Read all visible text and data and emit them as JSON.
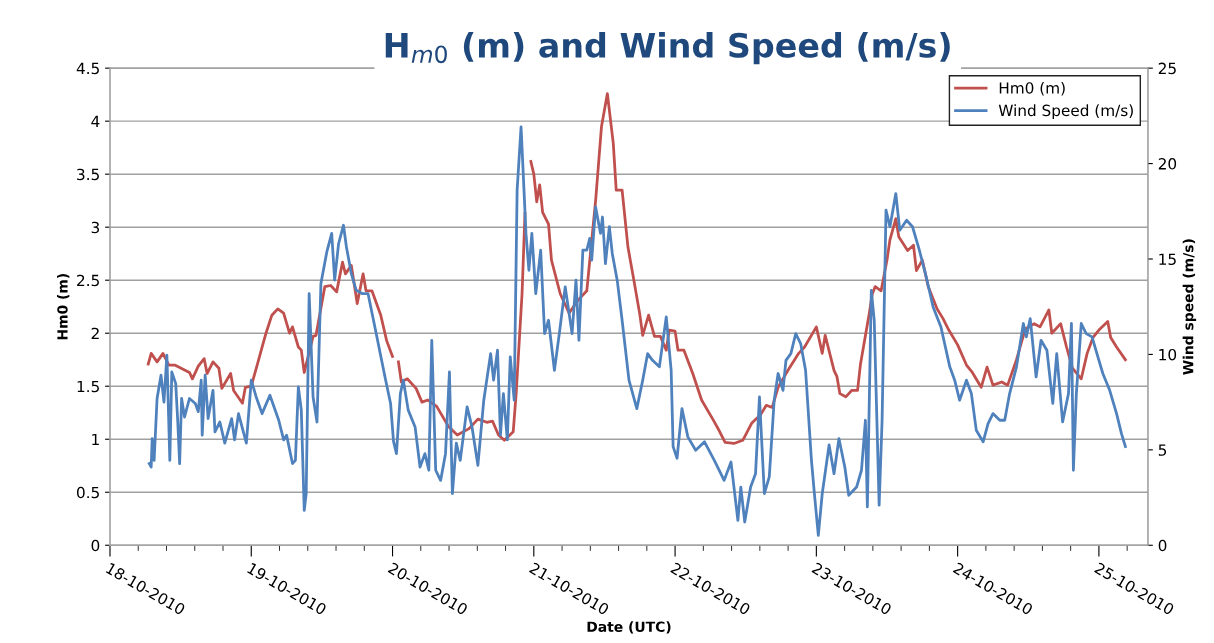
{
  "chart_data": {
    "type": "line",
    "title": "H$_{m0}$ (m) and Wind Speed (m/s)",
    "xlabel": "Date (UTC)",
    "ylabel": "Hm0 (m)",
    "y2label": "Wind speed (m/s)",
    "xlim": [
      "2010-10-18T00:00",
      "2010-10-25T08:20"
    ],
    "xticks": [
      {
        "value": "2010-10-18",
        "label": "18-10-2010"
      },
      {
        "value": "2010-10-19",
        "label": "19-10-2010"
      },
      {
        "value": "2010-10-20",
        "label": "20-10-2010"
      },
      {
        "value": "2010-10-21",
        "label": "21-10-2010"
      },
      {
        "value": "2010-10-22",
        "label": "22-10-2010"
      },
      {
        "value": "2010-10-23",
        "label": "23-10-2010"
      },
      {
        "value": "2010-10-24",
        "label": "24-10-2010"
      },
      {
        "value": "2010-10-25",
        "label": "25-10-2010"
      }
    ],
    "ylim": [
      0,
      4.5
    ],
    "yticks": [
      0,
      0.5,
      1,
      1.5,
      2,
      2.5,
      3,
      3.5,
      4,
      4.5
    ],
    "y2lim": [
      0,
      25
    ],
    "y2ticks": [
      0,
      5,
      10,
      15,
      20,
      25
    ],
    "grid": "y",
    "legend": "top right",
    "marker": "none",
    "line_style": "solid",
    "series": [
      {
        "name": "Hm0 (m)",
        "color": "#c0504d",
        "x": [
          "2010-10-18T06:30",
          "2010-10-18T07:00",
          "2010-10-18T08:00",
          "2010-10-18T09:00",
          "2010-10-18T10:00",
          "2010-10-18T11:00",
          "2010-10-18T13:30",
          "2010-10-18T14:00",
          "2010-10-18T15:00",
          "2010-10-18T16:00",
          "2010-10-18T16:30",
          "2010-10-18T17:30",
          "2010-10-18T18:30",
          "2010-10-18T19:00",
          "2010-10-18T20:30",
          "2010-10-18T21:00",
          "2010-10-18T22:30",
          "2010-10-18T23:00",
          "2010-10-19T00:00",
          "2010-10-19T01:00",
          "2010-10-19T02:30",
          "2010-10-19T03:30",
          "2010-10-19T04:30",
          "2010-10-19T05:30",
          "2010-10-19T06:30",
          "2010-10-19T07:00",
          "2010-10-19T08:00",
          "2010-10-19T08:30",
          "2010-10-19T09:00",
          "2010-10-19T10:30",
          "2010-10-19T11:00",
          "2010-10-19T12:30",
          "2010-10-19T13:30",
          "2010-10-19T14:30",
          "2010-10-19T15:30",
          "2010-10-19T16:00",
          "2010-10-19T17:00",
          "2010-10-19T18:00",
          "2010-10-19T19:00",
          "2010-10-19T19:30",
          "2010-10-19T20:30",
          "2010-10-19T22:00",
          "2010-10-19T23:00",
          "2010-10-20T00:00",
          "2010-10-20T00:30",
          "2010-10-20T01:00",
          "2010-10-20T01:30",
          "2010-10-20T02:30",
          "2010-10-20T04:00",
          "2010-10-20T05:00",
          "2010-10-20T06:00",
          "2010-10-20T07:30",
          "2010-10-20T09:30",
          "2010-10-20T11:00",
          "2010-10-20T13:00",
          "2010-10-20T14:30",
          "2010-10-20T16:00",
          "2010-10-20T17:00",
          "2010-10-20T18:00",
          "2010-10-20T19:00",
          "2010-10-20T20:30",
          "2010-10-20T21:00",
          "2010-10-20T22:00",
          "2010-10-20T22:30",
          "2010-10-20T23:00",
          "2010-10-20T23:30",
          "2010-10-21T00:00",
          "2010-10-21T00:30",
          "2010-10-21T01:00",
          "2010-10-21T01:30",
          "2010-10-21T02:30",
          "2010-10-21T03:00",
          "2010-10-21T04:30",
          "2010-10-21T05:30",
          "2010-10-21T06:00",
          "2010-10-21T07:30",
          "2010-10-21T09:00",
          "2010-10-21T10:30",
          "2010-10-21T11:30",
          "2010-10-21T12:30",
          "2010-10-21T13:30",
          "2010-10-21T14:00",
          "2010-10-21T15:00",
          "2010-10-21T16:00",
          "2010-10-21T17:00",
          "2010-10-21T18:00",
          "2010-10-21T18:30",
          "2010-10-21T19:30",
          "2010-10-21T20:30",
          "2010-10-21T21:30",
          "2010-10-21T22:30",
          "2010-10-21T23:00",
          "2010-10-22T00:00",
          "2010-10-22T00:30",
          "2010-10-22T01:30",
          "2010-10-22T03:00",
          "2010-10-22T04:30",
          "2010-10-22T06:30",
          "2010-10-22T07:30",
          "2010-10-22T08:30",
          "2010-10-22T10:00",
          "2010-10-22T11:30",
          "2010-10-22T13:00",
          "2010-10-22T14:30",
          "2010-10-22T15:30",
          "2010-10-22T16:30",
          "2010-10-22T17:30",
          "2010-10-22T19:30",
          "2010-10-22T21:00",
          "2010-10-22T22:00",
          "2010-10-23T00:00",
          "2010-10-23T01:00",
          "2010-10-23T01:30",
          "2010-10-23T03:00",
          "2010-10-23T03:30",
          "2010-10-23T04:00",
          "2010-10-23T05:00",
          "2010-10-23T06:00",
          "2010-10-23T07:00",
          "2010-10-23T07:30",
          "2010-10-23T09:00",
          "2010-10-23T09:30",
          "2010-10-23T10:00",
          "2010-10-23T11:00",
          "2010-10-23T12:00",
          "2010-10-23T12:30",
          "2010-10-23T13:30",
          "2010-10-23T14:00",
          "2010-10-23T15:30",
          "2010-10-23T16:30",
          "2010-10-23T17:00",
          "2010-10-23T18:00",
          "2010-10-23T19:00",
          "2010-10-23T20:30",
          "2010-10-23T21:30",
          "2010-10-23T22:30",
          "2010-10-24T00:00",
          "2010-10-24T01:30",
          "2010-10-24T02:30",
          "2010-10-24T04:00",
          "2010-10-24T05:00",
          "2010-10-24T06:00",
          "2010-10-24T07:30",
          "2010-10-24T08:30",
          "2010-10-24T10:00",
          "2010-10-24T11:30",
          "2010-10-24T13:00",
          "2010-10-24T14:00",
          "2010-10-24T15:30",
          "2010-10-24T16:00",
          "2010-10-24T17:30",
          "2010-10-24T18:30",
          "2010-10-24T19:30",
          "2010-10-24T21:00",
          "2010-10-24T22:00",
          "2010-10-24T23:00",
          "2010-10-25T00:00",
          "2010-10-25T01:30",
          "2010-10-25T02:00",
          "2010-10-25T03:00",
          "2010-10-25T04:30"
        ],
        "values": [
          1.71,
          1.81,
          1.73,
          1.81,
          1.7,
          1.7,
          1.63,
          1.57,
          1.69,
          1.76,
          1.62,
          1.73,
          1.67,
          1.48,
          1.62,
          1.46,
          1.34,
          1.49,
          1.5,
          1.7,
          2.0,
          2.17,
          2.23,
          2.19,
          2.0,
          2.06,
          1.87,
          1.84,
          1.63,
          1.97,
          1.98,
          2.44,
          2.45,
          2.39,
          2.67,
          2.56,
          2.64,
          2.28,
          2.56,
          2.4,
          2.4,
          2.17,
          1.93,
          1.78,
          null,
          1.73,
          1.54,
          1.57,
          1.48,
          1.35,
          1.37,
          1.31,
          1.12,
          1.04,
          1.1,
          1.19,
          1.16,
          1.17,
          1.04,
          0.99,
          1.07,
          1.43,
          2.37,
          3.13,
          null,
          3.62,
          3.5,
          3.24,
          3.4,
          3.14,
          3.03,
          2.69,
          2.37,
          2.25,
          2.19,
          2.31,
          2.4,
          3.25,
          3.95,
          4.26,
          3.79,
          3.35,
          3.35,
          2.81,
          2.5,
          2.18,
          1.98,
          2.17,
          1.97,
          1.97,
          1.84,
          2.03,
          2.02,
          1.84,
          1.84,
          1.62,
          1.37,
          1.18,
          1.08,
          0.97,
          0.96,
          0.99,
          1.15,
          1.23,
          1.32,
          1.3,
          1.49,
          1.68,
          1.81,
          1.87,
          2.06,
          1.81,
          1.98,
          1.65,
          1.59,
          1.43,
          1.4,
          1.46,
          1.46,
          1.71,
          2.19,
          2.37,
          2.44,
          2.4,
          2.69,
          2.88,
          3.08,
          2.91,
          2.78,
          2.83,
          2.59,
          2.69,
          2.44,
          2.23,
          2.14,
          2.03,
          1.89,
          1.7,
          1.63,
          1.49,
          1.68,
          1.51,
          1.54,
          1.51,
          1.75,
          2.04,
          2.09,
          2.06,
          2.22,
          2.0,
          2.09,
          1.87,
          1.67,
          1.57,
          1.81,
          1.96,
          2.03,
          2.11,
          1.96,
          1.87,
          1.75
        ]
      },
      {
        "name": "Wind Speed (m/s)",
        "color": "#4f81bd",
        "axis": "y2",
        "x": [
          "2010-10-18T06:40",
          "2010-10-18T07:00",
          "2010-10-18T07:10",
          "2010-10-18T07:30",
          "2010-10-18T08:00",
          "2010-10-18T08:40",
          "2010-10-18T09:10",
          "2010-10-18T09:40",
          "2010-10-18T10:10",
          "2010-10-18T10:30",
          "2010-10-18T11:10",
          "2010-10-18T11:30",
          "2010-10-18T11:50",
          "2010-10-18T12:10",
          "2010-10-18T12:40",
          "2010-10-18T13:30",
          "2010-10-18T14:30",
          "2010-10-18T15:00",
          "2010-10-18T15:30",
          "2010-10-18T15:40",
          "2010-10-18T16:10",
          "2010-10-18T16:40",
          "2010-10-18T17:30",
          "2010-10-18T17:50",
          "2010-10-18T18:40",
          "2010-10-18T19:30",
          "2010-10-18T20:40",
          "2010-10-18T21:10",
          "2010-10-18T21:50",
          "2010-10-18T23:10",
          "2010-10-19T00:00",
          "2010-10-19T00:50",
          "2010-10-19T01:50",
          "2010-10-19T03:10",
          "2010-10-19T04:40",
          "2010-10-19T05:30",
          "2010-10-19T06:00",
          "2010-10-19T07:00",
          "2010-10-19T07:30",
          "2010-10-19T08:00",
          "2010-10-19T08:30",
          "2010-10-19T09:00",
          "2010-10-19T09:20",
          "2010-10-19T09:50",
          "2010-10-19T10:30",
          "2010-10-19T11:10",
          "2010-10-19T11:50",
          "2010-10-19T12:50",
          "2010-10-19T13:40",
          "2010-10-19T14:10",
          "2010-10-19T14:50",
          "2010-10-19T15:40",
          "2010-10-19T16:10",
          "2010-10-19T17:00",
          "2010-10-19T17:50",
          "2010-10-19T18:50",
          "2010-10-19T19:50",
          "2010-10-19T21:00",
          "2010-10-19T22:50",
          "2010-10-19T23:40",
          "2010-10-20T00:10",
          "2010-10-20T00:40",
          "2010-10-20T01:20",
          "2010-10-20T01:50",
          "2010-10-20T02:40",
          "2010-10-20T03:50",
          "2010-10-20T04:40",
          "2010-10-20T05:30",
          "2010-10-20T06:10",
          "2010-10-20T06:40",
          "2010-10-20T07:20",
          "2010-10-20T08:10",
          "2010-10-20T09:00",
          "2010-10-20T09:40",
          "2010-10-20T10:10",
          "2010-10-20T10:50",
          "2010-10-20T11:30",
          "2010-10-20T12:40",
          "2010-10-20T13:30",
          "2010-10-20T14:30",
          "2010-10-20T15:30",
          "2010-10-20T16:40",
          "2010-10-20T17:10",
          "2010-10-20T17:50",
          "2010-10-20T18:20",
          "2010-10-20T18:50",
          "2010-10-20T19:30",
          "2010-10-20T20:00",
          "2010-10-20T20:40",
          "2010-10-20T21:10",
          "2010-10-20T21:50",
          "2010-10-20T22:20",
          "2010-10-20T22:40",
          "2010-10-20T23:10",
          "2010-10-20T23:40",
          "2010-10-21T00:20",
          "2010-10-21T01:10",
          "2010-10-21T01:50",
          "2010-10-21T02:30",
          "2010-10-21T03:30",
          "2010-10-21T04:20",
          "2010-10-21T05:20",
          "2010-10-21T06:30",
          "2010-10-21T07:10",
          "2010-10-21T07:40",
          "2010-10-21T08:20",
          "2010-10-21T09:00",
          "2010-10-21T09:30",
          "2010-10-21T09:50",
          "2010-10-21T10:30",
          "2010-10-21T11:20",
          "2010-10-21T11:40",
          "2010-10-21T12:10",
          "2010-10-21T12:50",
          "2010-10-21T13:20",
          "2010-10-21T14:10",
          "2010-10-21T15:00",
          "2010-10-21T16:10",
          "2010-10-21T17:30",
          "2010-10-21T18:30",
          "2010-10-21T19:20",
          "2010-10-21T20:10",
          "2010-10-21T21:20",
          "2010-10-21T22:30",
          "2010-10-21T23:20",
          "2010-10-21T23:40",
          "2010-10-22T00:20",
          "2010-10-22T01:10",
          "2010-10-22T02:10",
          "2010-10-22T03:30",
          "2010-10-22T05:00",
          "2010-10-22T06:40",
          "2010-10-22T08:20",
          "2010-10-22T09:30",
          "2010-10-22T10:40",
          "2010-10-22T11:10",
          "2010-10-22T11:50",
          "2010-10-22T12:50",
          "2010-10-22T13:40",
          "2010-10-22T14:20",
          "2010-10-22T15:10",
          "2010-10-22T16:00",
          "2010-10-22T16:50",
          "2010-10-22T17:30",
          "2010-10-22T18:20",
          "2010-10-22T18:50",
          "2010-10-22T19:40",
          "2010-10-22T20:30",
          "2010-10-22T21:20",
          "2010-10-22T22:10",
          "2010-10-22T23:10",
          "2010-10-22T23:40",
          "2010-10-23T00:20",
          "2010-10-23T01:00",
          "2010-10-23T02:10",
          "2010-10-23T03:00",
          "2010-10-23T03:50",
          "2010-10-23T04:50",
          "2010-10-23T05:30",
          "2010-10-23T06:50",
          "2010-10-23T07:40",
          "2010-10-23T08:20",
          "2010-10-23T08:40",
          "2010-10-23T09:20",
          "2010-10-23T09:50",
          "2010-10-23T10:40",
          "2010-10-23T11:10",
          "2010-10-23T11:50",
          "2010-10-23T12:30",
          "2010-10-23T13:00",
          "2010-10-23T13:30",
          "2010-10-23T14:10",
          "2010-10-23T15:20",
          "2010-10-23T16:20",
          "2010-10-23T17:30",
          "2010-10-23T18:40",
          "2010-10-23T19:50",
          "2010-10-23T21:10",
          "2010-10-23T22:40",
          "2010-10-23T23:30",
          "2010-10-24T00:20",
          "2010-10-24T01:30",
          "2010-10-24T02:20",
          "2010-10-24T03:10",
          "2010-10-24T04:20",
          "2010-10-24T05:10",
          "2010-10-24T06:00",
          "2010-10-24T07:10",
          "2010-10-24T08:00",
          "2010-10-24T08:50",
          "2010-10-24T10:00",
          "2010-10-24T11:10",
          "2010-10-24T11:40",
          "2010-10-24T12:20",
          "2010-10-24T13:20",
          "2010-10-24T14:10",
          "2010-10-24T15:10",
          "2010-10-24T16:10",
          "2010-10-24T16:50",
          "2010-10-24T17:50",
          "2010-10-24T18:50",
          "2010-10-24T19:20",
          "2010-10-24T19:40",
          "2010-10-24T20:10",
          "2010-10-24T21:00",
          "2010-10-24T21:50",
          "2010-10-24T22:50",
          "2010-10-24T23:40",
          "2010-10-25T00:40",
          "2010-10-25T01:50",
          "2010-10-25T03:00",
          "2010-10-25T03:50",
          "2010-10-25T04:30"
        ],
        "values": [
          4.28,
          4.1,
          5.59,
          4.45,
          7.69,
          8.91,
          7.5,
          9.96,
          4.45,
          9.08,
          8.47,
          6.55,
          4.28,
          7.69,
          6.72,
          7.69,
          7.43,
          7.0,
          8.65,
          5.77,
          8.91,
          6.64,
          8.12,
          5.94,
          6.46,
          5.35,
          6.64,
          5.52,
          6.9,
          5.35,
          8.65,
          7.77,
          6.9,
          7.86,
          6.55,
          5.52,
          5.77,
          4.28,
          4.45,
          8.3,
          7.08,
          1.83,
          2.71,
          13.19,
          7.77,
          6.46,
          13.72,
          15.37,
          16.34,
          13.9,
          15.8,
          16.77,
          15.63,
          14.23,
          13.36,
          13.19,
          13.19,
          11.44,
          8.65,
          7.43,
          5.44,
          4.8,
          7.95,
          8.65,
          7.08,
          6.2,
          4.1,
          4.8,
          3.93,
          10.74,
          3.93,
          3.4,
          4.8,
          9.08,
          2.71,
          5.35,
          4.45,
          7.25,
          6.2,
          4.19,
          7.6,
          10.04,
          8.65,
          10.22,
          5.77,
          7.95,
          5.52,
          9.87,
          7.6,
          18.61,
          21.92,
          18.61,
          16.34,
          14.41,
          16.34,
          13.19,
          15.46,
          11.09,
          11.79,
          9.17,
          11.09,
          13.54,
          11.09,
          13.89,
          10.74,
          15.46,
          15.46,
          16.08,
          14.94,
          17.73,
          16.34,
          17.2,
          14.76,
          16.69,
          15.28,
          13.89,
          11.79,
          8.65,
          7.16,
          8.65,
          10.04,
          9.69,
          9.35,
          11.97,
          9.17,
          5.17,
          4.56,
          7.16,
          5.68,
          4.98,
          5.42,
          4.45,
          3.4,
          4.36,
          1.31,
          3.05,
          1.22,
          3.05,
          3.75,
          7.77,
          2.71,
          3.58,
          7.6,
          9.0,
          8.12,
          9.69,
          10.04,
          11.09,
          10.57,
          9.17,
          4.45,
          2.71,
          0.52,
          2.71,
          5.26,
          3.75,
          5.59,
          4.1,
          2.62,
          3.05,
          3.93,
          6.55,
          2.01,
          13.36,
          11.79,
          2.1,
          6.55,
          17.56,
          16.69,
          17.56,
          18.43,
          16.51,
          17.03,
          16.69,
          15.46,
          14.06,
          12.49,
          11.44,
          9.35,
          8.65,
          7.6,
          8.65,
          7.95,
          6.03,
          5.42,
          6.37,
          6.9,
          6.55,
          6.55,
          7.95,
          9.35,
          11.62,
          10.92,
          11.88,
          8.82,
          10.74,
          10.22,
          7.43,
          10.04,
          6.46,
          7.95,
          11.62,
          3.93,
          7.95,
          11.62,
          11.09,
          10.92,
          10.04,
          9.0,
          8.12,
          6.9,
          5.85,
          5.17
        ]
      }
    ]
  }
}
